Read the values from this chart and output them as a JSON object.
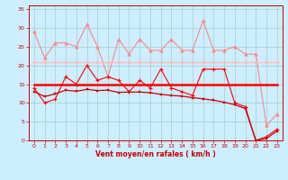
{
  "x": [
    0,
    1,
    2,
    3,
    4,
    5,
    6,
    7,
    8,
    9,
    10,
    11,
    12,
    13,
    14,
    15,
    16,
    17,
    18,
    19,
    20,
    21,
    22,
    23
  ],
  "line_rafales_max": [
    29,
    22,
    26,
    26,
    25,
    31,
    25,
    17,
    27,
    23,
    27,
    24,
    24,
    27,
    24,
    24,
    32,
    24,
    24,
    25,
    23,
    23,
    4,
    7
  ],
  "line_rafales_mean": [
    21,
    21,
    21,
    21,
    21,
    21,
    21,
    21,
    21,
    21,
    21,
    21,
    21,
    21,
    21,
    21,
    21,
    21,
    21,
    21,
    21,
    21,
    21,
    21
  ],
  "line_vent_spiky": [
    14,
    10,
    11,
    17,
    15,
    20,
    16,
    17,
    16,
    13,
    16,
    14,
    19,
    14,
    13,
    12,
    19,
    19,
    19,
    10,
    9,
    0,
    1,
    3
  ],
  "line_vent_flat": [
    15,
    15,
    15,
    15,
    15,
    15,
    15,
    15,
    15,
    15,
    15,
    15,
    15,
    15,
    15,
    15,
    15,
    15,
    15,
    15,
    15,
    15,
    15,
    15
  ],
  "line_vent_decline": [
    13,
    11.7,
    12.4,
    13.4,
    13.1,
    13.6,
    13.3,
    13.4,
    12.8,
    12.9,
    12.9,
    12.7,
    12.3,
    12.0,
    11.8,
    11.4,
    11.1,
    10.7,
    10.2,
    9.5,
    8.5,
    0,
    0.5,
    2.5
  ],
  "bg_color": "#cceeff",
  "grid_color": "#aacccc",
  "color_pink_dark": "#ff8888",
  "color_pink_light": "#ffbbbb",
  "color_red": "#ff0000",
  "color_darkred": "#cc0000",
  "xlabel": "Vent moyen/en rafales ( km/h )",
  "ylim": [
    0,
    36
  ],
  "xlim": [
    -0.5,
    23.5
  ],
  "yticks": [
    0,
    5,
    10,
    15,
    20,
    25,
    30,
    35
  ],
  "xticks": [
    0,
    1,
    2,
    3,
    4,
    5,
    6,
    7,
    8,
    9,
    10,
    11,
    12,
    13,
    14,
    15,
    16,
    17,
    18,
    19,
    20,
    21,
    22,
    23
  ]
}
